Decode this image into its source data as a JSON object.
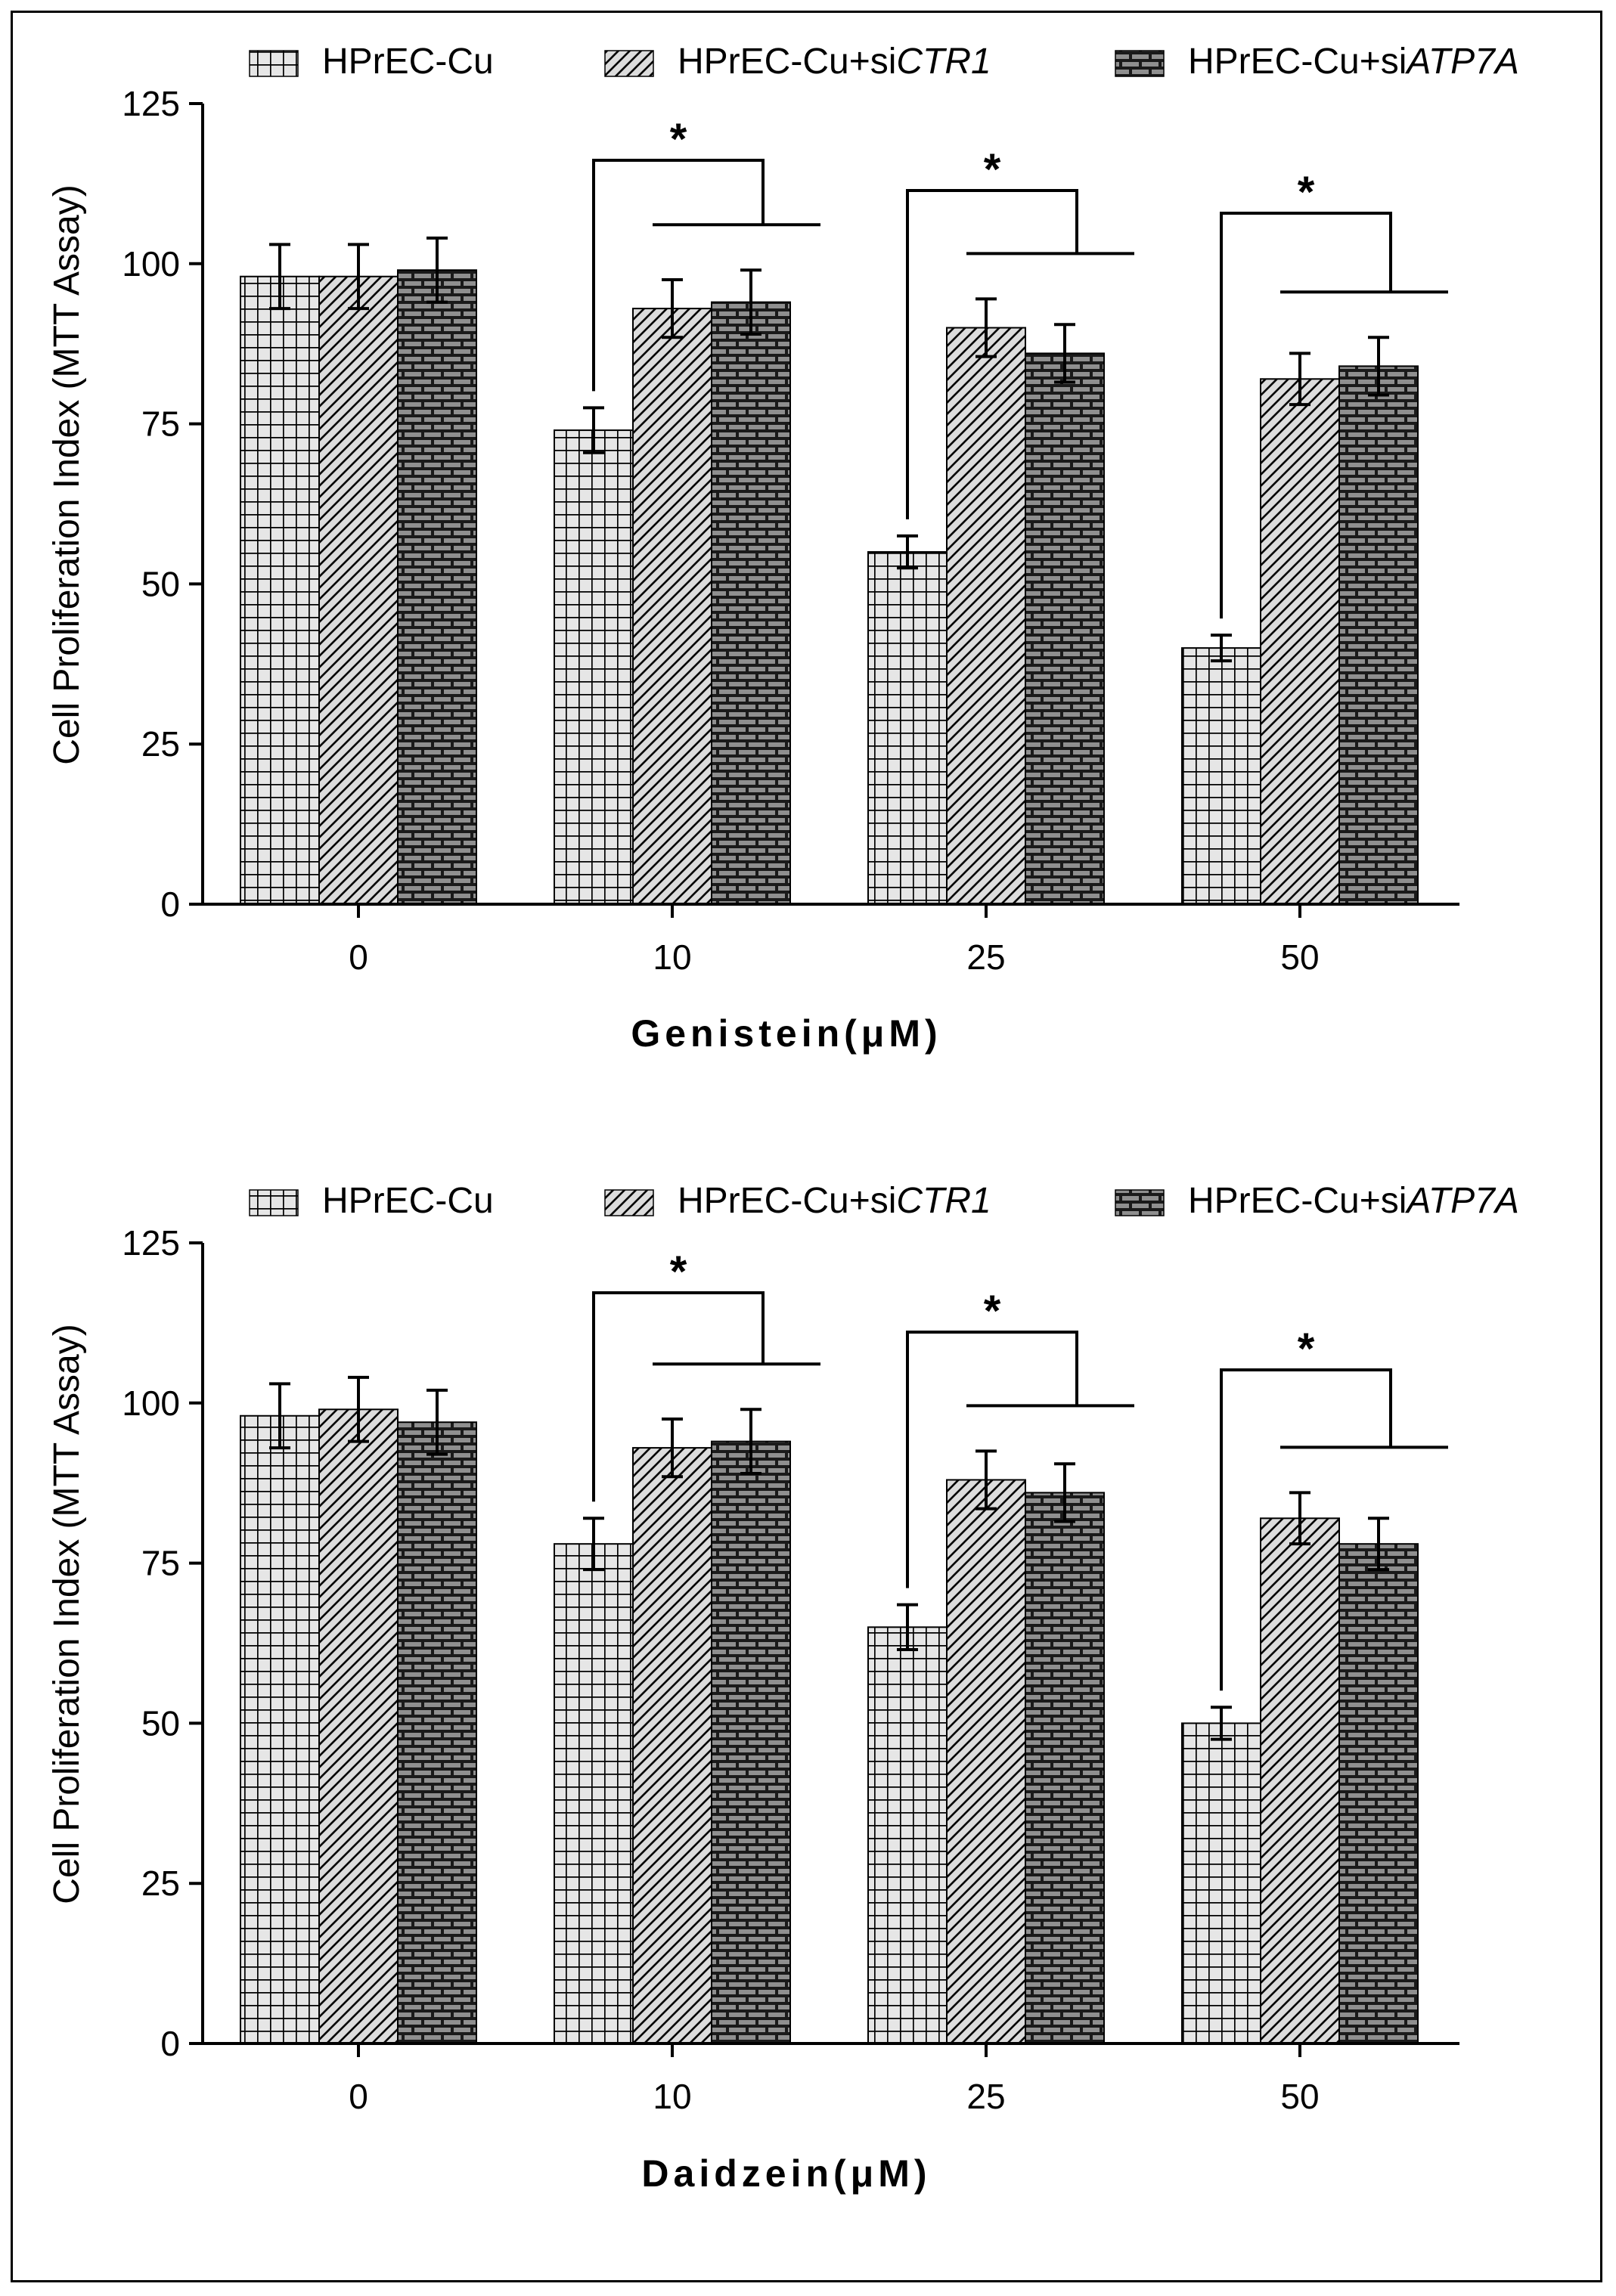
{
  "chart_data": [
    {
      "type": "bar",
      "title": "",
      "xlabel": "Genistein(μM)",
      "ylabel": "Cell Proliferation Index (MTT Assay)",
      "ylim": [
        0,
        125
      ],
      "yticks": [
        "0",
        "25",
        "50",
        "75",
        "100",
        "125"
      ],
      "categories": [
        "0",
        "10",
        "25",
        "50"
      ],
      "legend_position": "top",
      "series": [
        {
          "name": "HPrEC-Cu",
          "name_plain": "HPrEC-Cu",
          "name_italic": "",
          "pattern": "grid",
          "values": [
            98,
            74,
            55,
            40
          ],
          "errors": [
            5,
            3.5,
            2.5,
            2
          ]
        },
        {
          "name": "HPrEC-Cu+siCTR1",
          "name_plain": "HPrEC-Cu+si",
          "name_italic": "CTR1",
          "pattern": "diagonal",
          "values": [
            98,
            93,
            90,
            82
          ],
          "errors": [
            5,
            4.5,
            4.5,
            4
          ]
        },
        {
          "name": "HPrEC-Cu+siATP7A",
          "name_plain": "HPrEC-Cu+si",
          "name_italic": "ATP7A",
          "pattern": "brick",
          "values": [
            99,
            94,
            86,
            84
          ],
          "errors": [
            5,
            5,
            4.5,
            4.5
          ]
        }
      ],
      "significance": [
        {
          "category": "10",
          "label": "*"
        },
        {
          "category": "25",
          "label": "*"
        },
        {
          "category": "50",
          "label": "*"
        }
      ]
    },
    {
      "type": "bar",
      "title": "",
      "xlabel": "Daidzein(μM)",
      "ylabel": "Cell Proliferation Index (MTT Assay)",
      "ylim": [
        0,
        125
      ],
      "yticks": [
        "0",
        "25",
        "50",
        "75",
        "100",
        "125"
      ],
      "categories": [
        "0",
        "10",
        "25",
        "50"
      ],
      "legend_position": "top",
      "series": [
        {
          "name": "HPrEC-Cu",
          "name_plain": "HPrEC-Cu",
          "name_italic": "",
          "pattern": "grid",
          "values": [
            98,
            78,
            65,
            50
          ],
          "errors": [
            5,
            4,
            3.5,
            2.5
          ]
        },
        {
          "name": "HPrEC-Cu+siCTR1",
          "name_plain": "HPrEC-Cu+si",
          "name_italic": "CTR1",
          "pattern": "diagonal",
          "values": [
            99,
            93,
            88,
            82
          ],
          "errors": [
            5,
            4.5,
            4.5,
            4
          ]
        },
        {
          "name": "HPrEC-Cu+siATP7A",
          "name_plain": "HPrEC-Cu+si",
          "name_italic": "ATP7A",
          "pattern": "brick",
          "values": [
            97,
            94,
            86,
            78
          ],
          "errors": [
            5,
            5,
            4.5,
            4
          ]
        }
      ],
      "significance": [
        {
          "category": "10",
          "label": "*"
        },
        {
          "category": "25",
          "label": "*"
        },
        {
          "category": "50",
          "label": "*"
        }
      ]
    }
  ]
}
